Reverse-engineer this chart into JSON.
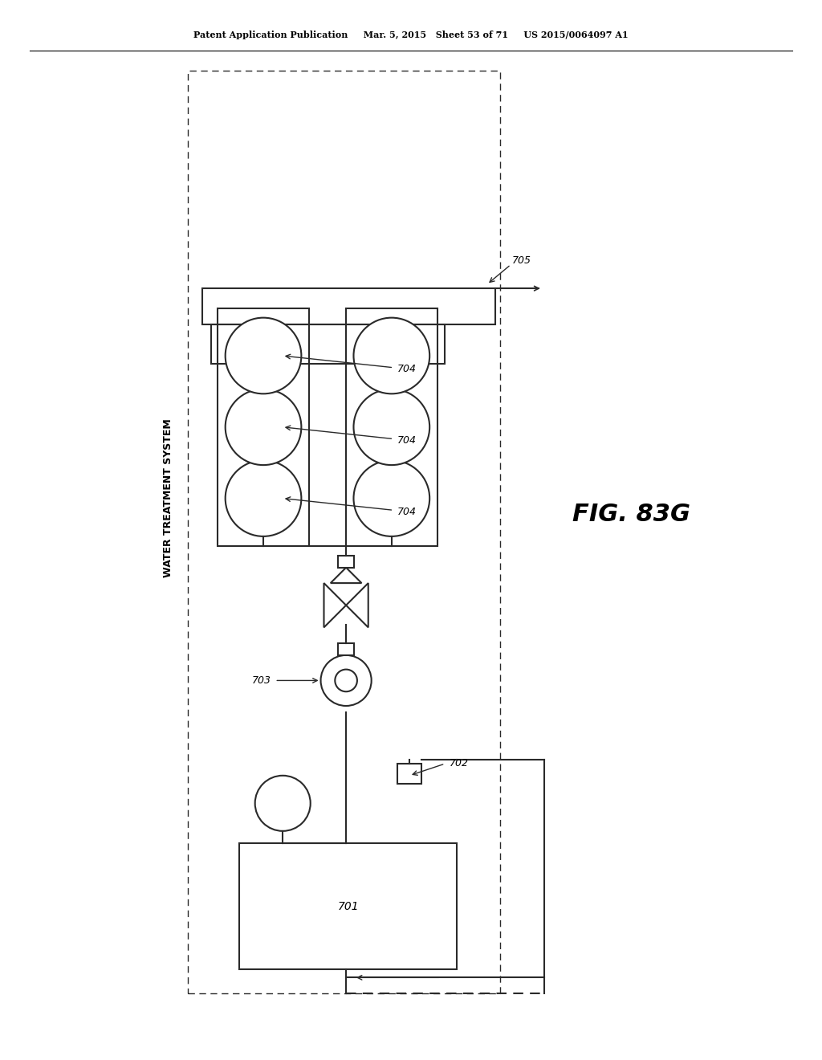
{
  "bg_color": "#ffffff",
  "line_color": "#2a2a2a",
  "title_text": "Patent Application Publication     Mar. 5, 2015   Sheet 53 of 71     US 2015/0064097 A1",
  "fig_label": "FIG. 83G",
  "system_label": "WATER TREATMENT SYSTEM"
}
